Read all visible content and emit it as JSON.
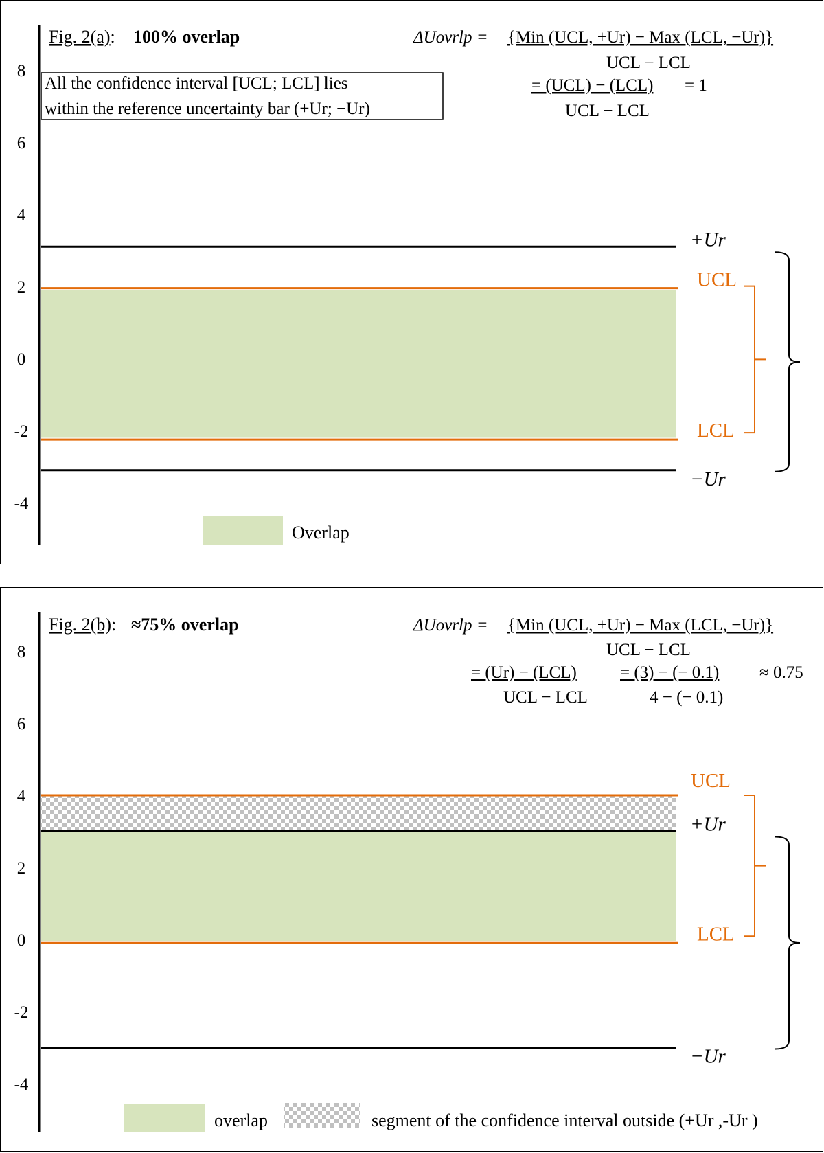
{
  "colors": {
    "overlap_fill": "#d7e4bd",
    "ci_line": "#e36c0a",
    "ur_line": "#000000",
    "bracket_ci": "#e36c0a",
    "outside_pattern": "#c0c0c0"
  },
  "chart_data": [
    {
      "type": "diagram",
      "figure_label": "Fig. 2(a)",
      "title": "100% overlap",
      "y_ticks": [
        "8",
        "6",
        "4",
        "2",
        "0",
        "-2",
        "-4"
      ],
      "ylim": [
        -5.2,
        9.2
      ],
      "Ur": 3.1,
      "UCL": 1.95,
      "LCL": -2.25,
      "overlap_range": [
        -2.2,
        1.9
      ],
      "labels": {
        "plus_ur": "+Ur",
        "minus_ur": "−Ur",
        "ucl": "UCL",
        "lcl": "LCL"
      },
      "equation": {
        "lhs": "ΔUovrlp =",
        "numerator": "{Min (UCL, +Ur) − Max (LCL, −Ur)}",
        "denominator": "UCL − LCL",
        "step_numerator": "= (UCL) − (LCL)",
        "step_denominator": "UCL − LCL",
        "result": "= 1"
      },
      "note_line1": "All the confidence interval [UCL; LCL] lies",
      "note_line2": "within the reference uncertainty bar (+Ur; −Ur)",
      "legend": {
        "overlap": "Overlap"
      }
    },
    {
      "type": "diagram",
      "figure_label": "Fig. 2(b)",
      "title": "≈75% overlap",
      "y_ticks": [
        "8",
        "6",
        "4",
        "2",
        "0",
        "-2",
        "-4"
      ],
      "ylim": [
        -5.2,
        9.2
      ],
      "Ur": 3.0,
      "UCL": 4.0,
      "LCL": -0.1,
      "overlap_range": [
        -0.05,
        3.0
      ],
      "outside_range": [
        3.0,
        4.0
      ],
      "labels": {
        "plus_ur": "+Ur",
        "minus_ur": "−Ur",
        "ucl": "UCL",
        "lcl": "LCL"
      },
      "equation": {
        "lhs": "ΔUovrlp =",
        "numerator": "{Min (UCL, +Ur) − Max (LCL, −Ur)}",
        "denominator": "UCL − LCL",
        "step_numerator": "= (Ur) − (LCL)",
        "step_denominator": "UCL − LCL",
        "step2_numerator": "= (3) − (− 0.1)",
        "step2_denominator": "4 − (− 0.1)",
        "result": "≈ 0.75"
      },
      "legend": {
        "overlap": "overlap",
        "outside": "segment of the confidence interval outside (+Ur ,-Ur )"
      }
    }
  ]
}
